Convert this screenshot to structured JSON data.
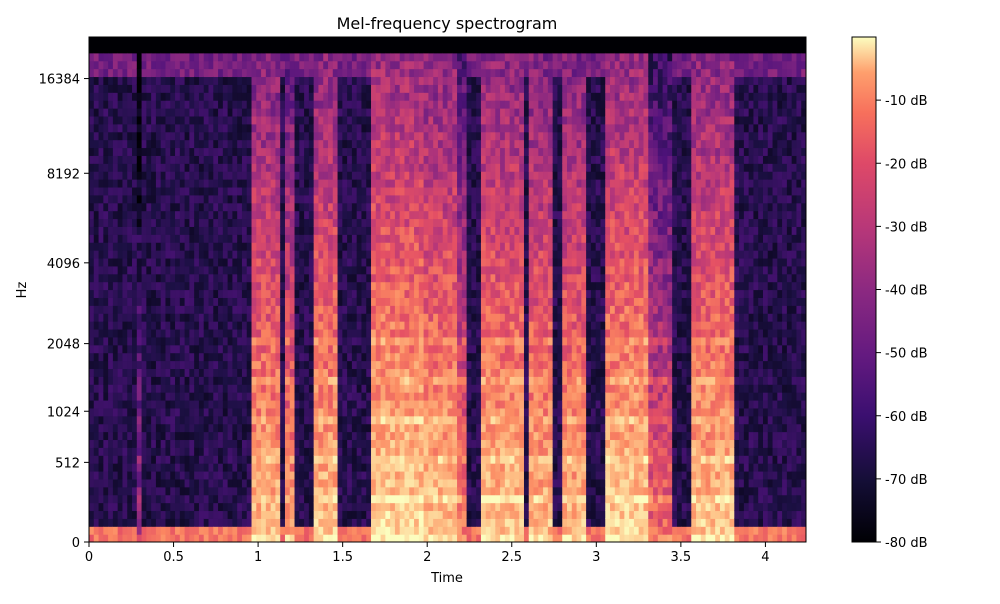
{
  "chart_data": {
    "type": "heatmap",
    "title": "Mel-frequency spectrogram",
    "xlabel": "Time",
    "ylabel": "Hz",
    "xlim": [
      0,
      4.24
    ],
    "x_ticks": [
      0,
      0.5,
      1,
      1.5,
      2,
      2.5,
      3,
      3.5,
      4
    ],
    "x_tick_labels": [
      "0",
      "0.5",
      "1",
      "1.5",
      "2",
      "2.5",
      "3",
      "3.5",
      "4"
    ],
    "y_scale": "mel",
    "ylim": [
      0,
      22050
    ],
    "y_ticks": [
      0,
      512,
      1024,
      2048,
      4096,
      8192,
      16384
    ],
    "y_tick_labels": [
      "0",
      "512",
      "1024",
      "2048",
      "4096",
      "8192",
      "16384"
    ],
    "colormap": "magma",
    "colorbar": {
      "range": [
        -80,
        0
      ],
      "unit": "dB",
      "ticks": [
        -80,
        -70,
        -60,
        -50,
        -40,
        -30,
        -20,
        -10
      ],
      "tick_labels": [
        "-80 dB",
        "-70 dB",
        "-60 dB",
        "-50 dB",
        "-40 dB",
        "-30 dB",
        "-20 dB",
        "-10 dB"
      ]
    },
    "energy_bursts": [
      {
        "start": 0.27,
        "end": 0.31,
        "level_db": -45
      },
      {
        "start": 0.95,
        "end": 1.12,
        "level_db": -10
      },
      {
        "start": 1.17,
        "end": 1.22,
        "level_db": -15
      },
      {
        "start": 1.32,
        "end": 1.47,
        "level_db": -8
      },
      {
        "start": 1.66,
        "end": 1.97,
        "level_db": -5
      },
      {
        "start": 1.97,
        "end": 2.17,
        "level_db": -8
      },
      {
        "start": 2.17,
        "end": 2.24,
        "level_db": -20
      },
      {
        "start": 2.33,
        "end": 2.56,
        "level_db": -8
      },
      {
        "start": 2.6,
        "end": 2.75,
        "level_db": -10
      },
      {
        "start": 2.81,
        "end": 2.95,
        "level_db": -10
      },
      {
        "start": 3.05,
        "end": 3.3,
        "level_db": -6
      },
      {
        "start": 3.32,
        "end": 3.46,
        "level_db": -25
      },
      {
        "start": 3.56,
        "end": 3.82,
        "level_db": -8
      }
    ],
    "silences": [
      {
        "start": 0.0,
        "end": 0.95,
        "level_db": -68
      },
      {
        "start": 3.85,
        "end": 4.24,
        "level_db": -70
      }
    ]
  }
}
